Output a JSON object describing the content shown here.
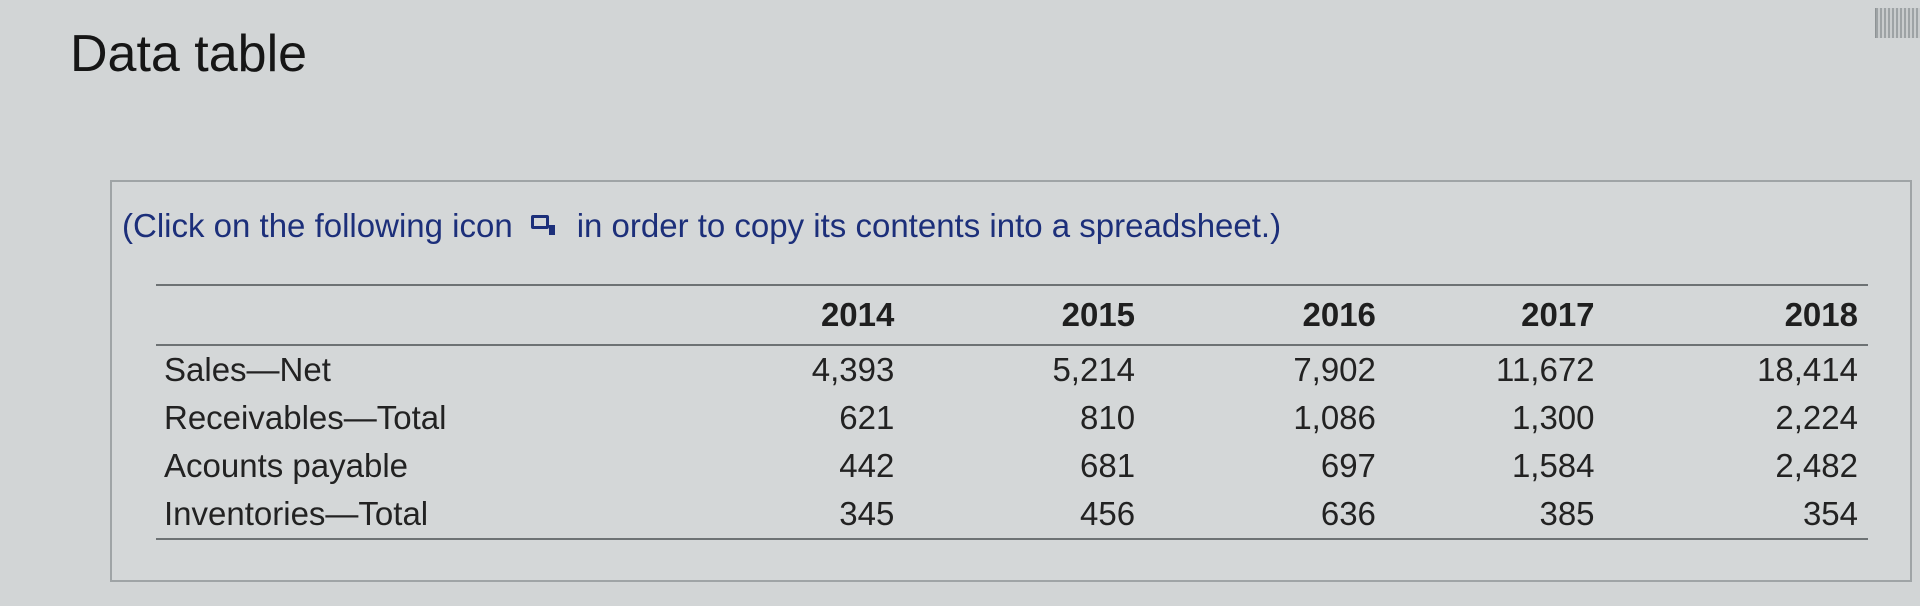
{
  "page": {
    "title": "Data table"
  },
  "panel": {
    "instruction_before": "(Click on the following icon",
    "instruction_icon": "copy-to-spreadsheet-icon",
    "instruction_after": "in order to copy its contents into a spreadsheet.)"
  },
  "table": {
    "columns": [
      "2014",
      "2015",
      "2016",
      "2017",
      "2018"
    ],
    "rows": [
      {
        "label": "Sales—Net",
        "values": [
          "4,393",
          "5,214",
          "7,902",
          "11,672",
          "18,414"
        ]
      },
      {
        "label": "Receivables—Total",
        "values": [
          "621",
          "810",
          "1,086",
          "1,300",
          "2,224"
        ]
      },
      {
        "label": "Acounts payable",
        "values": [
          "442",
          "681",
          "697",
          "1,584",
          "2,482"
        ]
      },
      {
        "label": "Inventories—Total",
        "values": [
          "345",
          "456",
          "636",
          "385",
          "354"
        ]
      }
    ]
  },
  "colors": {
    "background": "#d2d5d6",
    "instruction_text": "#1c2f7a",
    "table_rule": "#6d7274"
  }
}
